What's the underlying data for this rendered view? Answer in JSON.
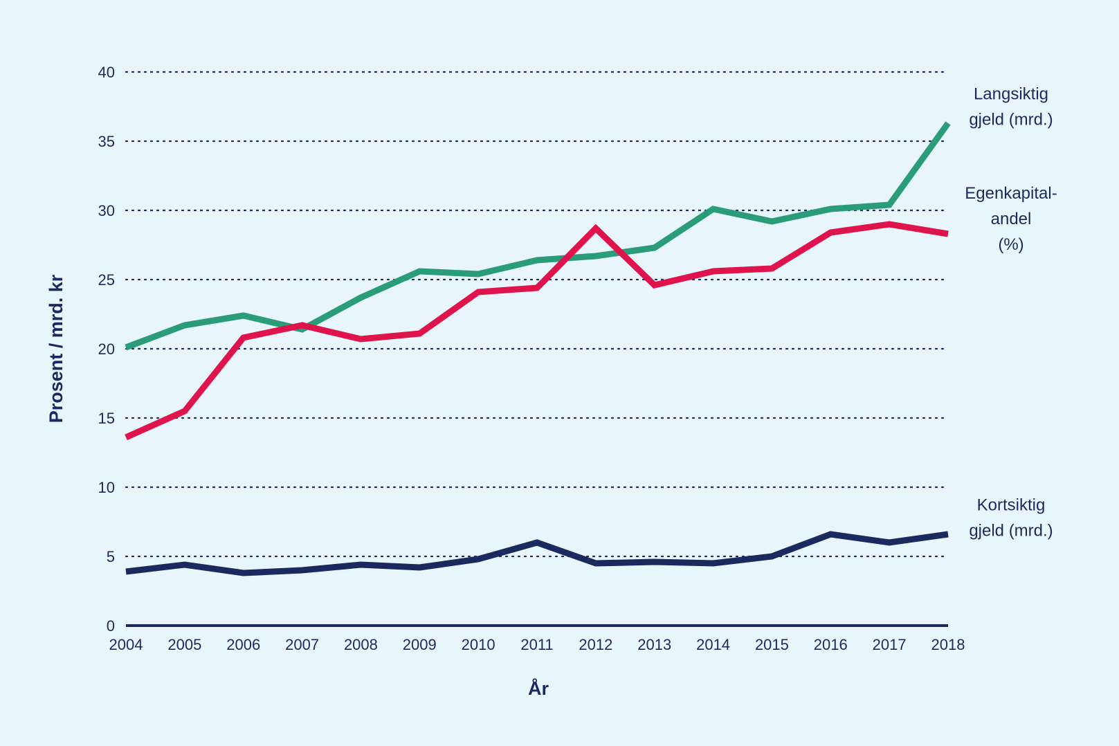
{
  "chart_data": {
    "type": "line",
    "xlabel": "År",
    "ylabel": "Prosent / mrd. kr",
    "ylim": [
      0,
      40
    ],
    "yticks": [
      0,
      5,
      10,
      15,
      20,
      25,
      30,
      35,
      40
    ],
    "grid": true,
    "legend": "direct labels at right end of lines",
    "categories": [
      "2004",
      "2005",
      "2006",
      "2007",
      "2008",
      "2009",
      "2010",
      "2011",
      "2012",
      "2013",
      "2014",
      "2015",
      "2016",
      "2017",
      "2018"
    ],
    "series": [
      {
        "name": "Langsiktig gjeld (mrd.)",
        "label_lines": [
          "Langsiktig",
          "gjeld (mrd.)"
        ],
        "color": "#2a9d78",
        "values": [
          20.1,
          21.7,
          22.4,
          21.4,
          23.7,
          25.6,
          25.4,
          26.4,
          26.7,
          27.3,
          30.1,
          29.2,
          30.1,
          30.4,
          36.3
        ]
      },
      {
        "name": "Egenkapital-andel (%)",
        "label_lines": [
          "Egenkapital-",
          "andel",
          "(%)"
        ],
        "color": "#e0144c",
        "values": [
          13.6,
          15.5,
          20.8,
          21.7,
          20.7,
          21.1,
          24.1,
          24.4,
          28.7,
          24.6,
          25.6,
          25.8,
          28.4,
          29.0,
          28.3
        ]
      },
      {
        "name": "Kortsiktig gjeld (mrd.)",
        "label_lines": [
          "Kortsiktig",
          "gjeld (mrd.)"
        ],
        "color": "#1b2a5e",
        "values": [
          3.9,
          4.4,
          3.8,
          4.0,
          4.4,
          4.2,
          4.8,
          6.0,
          4.5,
          4.6,
          4.5,
          5.0,
          6.6,
          6.0,
          6.6
        ]
      }
    ]
  }
}
